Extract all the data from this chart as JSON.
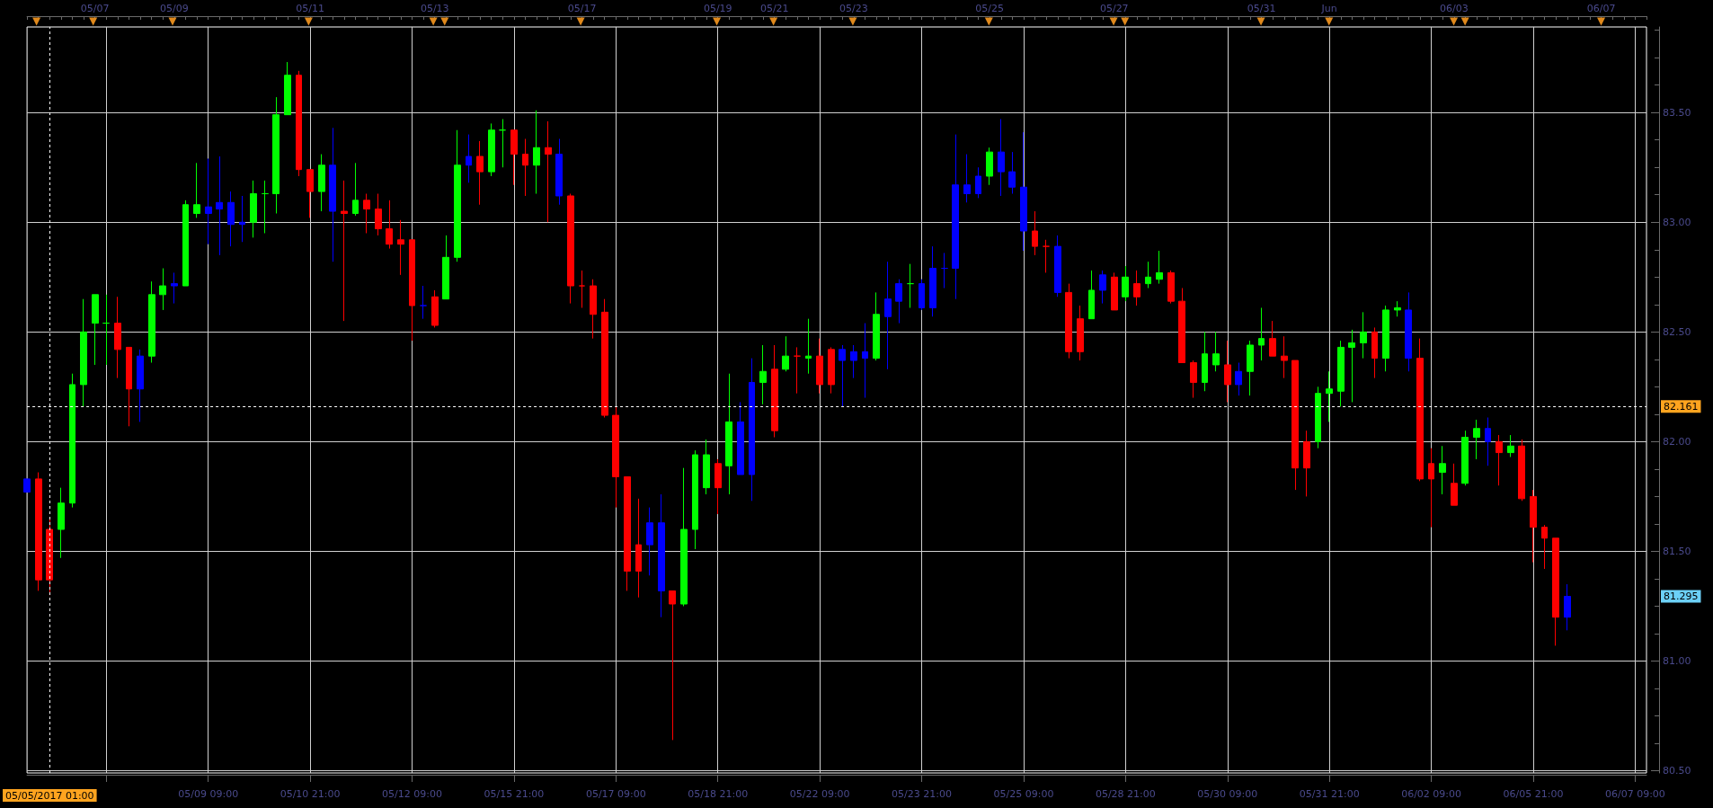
{
  "chart_data": {
    "type": "candlestick",
    "categories": [
      null,
      null,
      "05/05/2017 01:00",
      null,
      null,
      null,
      null,
      null,
      null,
      null,
      null,
      null,
      null,
      null,
      null,
      null,
      "05/09 09:00",
      null,
      null,
      null,
      null,
      null,
      null,
      null,
      null,
      "05/10 21:00",
      null,
      null,
      null,
      null,
      null,
      null,
      null,
      null,
      "05/12 09:00",
      null,
      null,
      null,
      null,
      null,
      null,
      null,
      null,
      "05/15 21:00",
      null,
      null,
      null,
      null,
      null,
      null,
      null,
      null,
      "05/17 09:00",
      null,
      null,
      null,
      null,
      null,
      null,
      null,
      null,
      "05/18 21:00",
      null,
      null,
      null,
      null,
      null,
      null,
      null,
      null,
      "05/22 09:00",
      null,
      null,
      null,
      null,
      null,
      null,
      null,
      null,
      "05/23 21:00",
      null,
      null,
      null,
      null,
      null,
      null,
      null,
      null,
      "05/25 09:00",
      null,
      null,
      null,
      null,
      null,
      null,
      null,
      null,
      "05/28 21:00",
      null,
      null,
      null,
      null,
      null,
      null,
      null,
      null,
      "05/30 09:00",
      null,
      null,
      null,
      null,
      null,
      null,
      null,
      null,
      "05/31 21:00",
      null,
      null,
      null,
      null,
      null,
      null,
      null,
      null,
      "06/02 09:00",
      null,
      null,
      null,
      null,
      null,
      null,
      null,
      null,
      "06/05 21:00",
      null,
      null,
      null,
      null,
      null,
      null,
      null,
      null,
      "06/07 09:00",
      null
    ],
    "ohlc": [
      [
        81.77,
        81.83,
        81.77,
        81.83
      ],
      [
        81.83,
        81.86,
        81.32,
        81.37
      ],
      [
        81.6,
        81.65,
        81.3,
        81.37
      ],
      [
        81.6,
        81.79,
        81.47,
        81.72
      ],
      [
        81.72,
        82.31,
        81.7,
        82.26
      ],
      [
        82.26,
        82.65,
        82.16,
        82.5
      ],
      [
        82.54,
        82.67,
        82.35,
        82.67
      ],
      [
        82.54,
        82.67,
        82.35,
        82.54
      ],
      [
        82.54,
        82.66,
        82.29,
        82.42
      ],
      [
        82.43,
        82.43,
        82.07,
        82.24
      ],
      [
        82.24,
        82.42,
        82.09,
        82.39
      ],
      [
        82.39,
        82.73,
        82.36,
        82.67
      ],
      [
        82.67,
        82.79,
        82.6,
        82.71
      ],
      [
        82.71,
        82.77,
        82.63,
        82.72
      ],
      [
        82.71,
        83.1,
        82.71,
        83.08
      ],
      [
        83.04,
        83.27,
        83.02,
        83.08
      ],
      [
        83.04,
        83.29,
        82.9,
        83.07
      ],
      [
        83.06,
        83.3,
        82.85,
        83.09
      ],
      [
        83.09,
        83.14,
        82.89,
        82.99
      ],
      [
        82.99,
        83.12,
        82.91,
        83.0
      ],
      [
        83.0,
        83.19,
        82.93,
        83.13
      ],
      [
        83.13,
        83.19,
        82.95,
        83.13
      ],
      [
        83.13,
        83.57,
        83.04,
        83.49
      ],
      [
        83.49,
        83.73,
        83.49,
        83.67
      ],
      [
        83.67,
        83.69,
        83.21,
        83.24
      ],
      [
        83.24,
        83.24,
        83.02,
        83.14
      ],
      [
        83.14,
        83.31,
        83.05,
        83.26
      ],
      [
        83.26,
        83.43,
        82.82,
        83.05
      ],
      [
        83.05,
        83.19,
        82.55,
        83.04
      ],
      [
        83.04,
        83.27,
        83.03,
        83.1
      ],
      [
        83.1,
        83.13,
        82.95,
        83.06
      ],
      [
        83.06,
        83.13,
        82.94,
        82.97
      ],
      [
        82.97,
        83.1,
        82.88,
        82.9
      ],
      [
        82.92,
        83.01,
        82.76,
        82.9
      ],
      [
        82.92,
        82.92,
        82.46,
        82.62
      ],
      [
        82.62,
        82.71,
        82.56,
        82.62
      ],
      [
        82.66,
        82.69,
        82.52,
        82.53
      ],
      [
        82.65,
        82.94,
        82.65,
        82.84
      ],
      [
        82.84,
        83.42,
        82.82,
        83.26
      ],
      [
        83.26,
        83.4,
        83.18,
        83.3
      ],
      [
        83.3,
        83.37,
        83.08,
        83.23
      ],
      [
        83.23,
        83.45,
        83.21,
        83.42
      ],
      [
        83.42,
        83.47,
        83.25,
        83.42
      ],
      [
        83.42,
        83.42,
        83.17,
        83.31
      ],
      [
        83.31,
        83.38,
        83.12,
        83.26
      ],
      [
        83.26,
        83.51,
        83.13,
        83.34
      ],
      [
        83.34,
        83.46,
        83.0,
        83.31
      ],
      [
        83.31,
        83.38,
        83.08,
        83.12
      ],
      [
        83.12,
        83.13,
        82.63,
        82.71
      ],
      [
        82.71,
        82.78,
        82.61,
        82.71
      ],
      [
        82.71,
        82.74,
        82.47,
        82.58
      ],
      [
        82.59,
        82.65,
        82.11,
        82.12
      ],
      [
        82.12,
        82.16,
        81.7,
        81.84
      ],
      [
        81.84,
        81.84,
        81.32,
        81.41
      ],
      [
        81.53,
        81.74,
        81.29,
        81.41
      ],
      [
        81.53,
        81.7,
        81.39,
        81.63
      ],
      [
        81.63,
        81.76,
        81.2,
        81.32
      ],
      [
        81.32,
        81.32,
        80.64,
        81.26
      ],
      [
        81.26,
        81.88,
        81.25,
        81.6
      ],
      [
        81.6,
        81.96,
        81.51,
        81.94
      ],
      [
        81.79,
        82.01,
        81.76,
        81.94
      ],
      [
        81.9,
        81.92,
        81.67,
        81.79
      ],
      [
        81.89,
        82.31,
        81.76,
        82.09
      ],
      [
        82.09,
        82.18,
        81.85,
        81.85
      ],
      [
        81.85,
        82.38,
        81.73,
        82.27
      ],
      [
        82.27,
        82.44,
        82.17,
        82.32
      ],
      [
        82.33,
        82.44,
        82.02,
        82.05
      ],
      [
        82.33,
        82.48,
        82.32,
        82.39
      ],
      [
        82.39,
        82.43,
        82.22,
        82.39
      ],
      [
        82.38,
        82.56,
        82.31,
        82.39
      ],
      [
        82.39,
        82.47,
        82.22,
        82.26
      ],
      [
        82.42,
        82.43,
        82.22,
        82.26
      ],
      [
        82.42,
        82.44,
        82.16,
        82.37
      ],
      [
        82.37,
        82.44,
        82.29,
        82.41
      ],
      [
        82.41,
        82.54,
        82.2,
        82.38
      ],
      [
        82.38,
        82.68,
        82.37,
        82.58
      ],
      [
        82.57,
        82.82,
        82.33,
        82.65
      ],
      [
        82.64,
        82.74,
        82.54,
        82.72
      ],
      [
        82.72,
        82.81,
        82.61,
        82.72
      ],
      [
        82.72,
        82.74,
        82.6,
        82.61
      ],
      [
        82.61,
        82.89,
        82.57,
        82.79
      ],
      [
        82.79,
        82.86,
        82.7,
        82.79
      ],
      [
        82.79,
        83.4,
        82.65,
        83.17
      ],
      [
        83.17,
        83.31,
        83.09,
        83.13
      ],
      [
        83.13,
        83.25,
        83.11,
        83.21
      ],
      [
        83.21,
        83.34,
        83.17,
        83.32
      ],
      [
        83.32,
        83.47,
        83.12,
        83.23
      ],
      [
        83.23,
        83.32,
        83.13,
        83.16
      ],
      [
        83.16,
        83.41,
        82.87,
        82.96
      ],
      [
        82.96,
        83.05,
        82.85,
        82.89
      ],
      [
        82.89,
        82.92,
        82.77,
        82.89
      ],
      [
        82.89,
        82.94,
        82.66,
        82.68
      ],
      [
        82.68,
        82.72,
        82.38,
        82.41
      ],
      [
        82.56,
        82.62,
        82.37,
        82.41
      ],
      [
        82.56,
        82.78,
        82.56,
        82.69
      ],
      [
        82.69,
        82.78,
        82.63,
        82.76
      ],
      [
        82.75,
        82.77,
        82.6,
        82.6
      ],
      [
        82.66,
        82.8,
        82.64,
        82.75
      ],
      [
        82.72,
        82.78,
        82.62,
        82.66
      ],
      [
        82.72,
        82.82,
        82.7,
        82.75
      ],
      [
        82.74,
        82.87,
        82.72,
        82.77
      ],
      [
        82.77,
        82.78,
        82.63,
        82.64
      ],
      [
        82.64,
        82.7,
        82.36,
        82.36
      ],
      [
        82.36,
        82.37,
        82.2,
        82.27
      ],
      [
        82.27,
        82.5,
        82.23,
        82.4
      ],
      [
        82.35,
        82.5,
        82.32,
        82.4
      ],
      [
        82.35,
        82.46,
        82.18,
        82.26
      ],
      [
        82.26,
        82.36,
        82.21,
        82.32
      ],
      [
        82.32,
        82.46,
        82.21,
        82.44
      ],
      [
        82.44,
        82.61,
        82.37,
        82.47
      ],
      [
        82.47,
        82.55,
        82.39,
        82.39
      ],
      [
        82.39,
        82.48,
        82.29,
        82.37
      ],
      [
        82.37,
        82.37,
        81.78,
        81.88
      ],
      [
        82.0,
        82.05,
        81.75,
        81.88
      ],
      [
        82.0,
        82.25,
        81.97,
        82.22
      ],
      [
        82.22,
        82.32,
        82.09,
        82.24
      ],
      [
        82.23,
        82.46,
        82.16,
        82.43
      ],
      [
        82.43,
        82.51,
        82.18,
        82.45
      ],
      [
        82.45,
        82.59,
        82.38,
        82.5
      ],
      [
        82.5,
        82.52,
        82.29,
        82.38
      ],
      [
        82.38,
        82.62,
        82.32,
        82.6
      ],
      [
        82.6,
        82.64,
        82.57,
        82.61
      ],
      [
        82.6,
        82.68,
        82.32,
        82.38
      ],
      [
        82.38,
        82.47,
        81.82,
        81.83
      ],
      [
        81.9,
        81.97,
        81.61,
        81.83
      ],
      [
        81.86,
        81.98,
        81.76,
        81.9
      ],
      [
        81.81,
        81.9,
        81.71,
        81.71
      ],
      [
        81.81,
        82.05,
        81.8,
        82.02
      ],
      [
        82.02,
        82.1,
        81.92,
        82.06
      ],
      [
        82.06,
        82.11,
        81.89,
        82.0
      ],
      [
        82.0,
        82.03,
        81.8,
        81.95
      ],
      [
        81.95,
        82.03,
        81.93,
        81.98
      ],
      [
        81.98,
        82.01,
        81.73,
        81.74
      ],
      [
        81.75,
        81.78,
        81.45,
        81.61
      ],
      [
        81.61,
        81.62,
        81.42,
        81.56
      ],
      [
        81.56,
        81.56,
        81.07,
        81.2
      ],
      [
        81.2,
        81.35,
        81.14,
        81.295
      ],
      null,
      null,
      null,
      null,
      null,
      null,
      null
    ],
    "colors": [
      "#0000ff",
      "#ff0000",
      "#ff0000",
      "#00ff00",
      "#00ff00",
      "#00ff00",
      "#00ff00",
      "#00ff00",
      "#ff0000",
      "#ff0000",
      "#0000ff",
      "#00ff00",
      "#00ff00",
      "#0000ff",
      "#00ff00",
      "#00ff00",
      "#0000ff",
      "#0000ff",
      "#0000ff",
      "#0000ff",
      "#00ff00",
      "#00ff00",
      "#00ff00",
      "#00ff00",
      "#ff0000",
      "#ff0000",
      "#00ff00",
      "#0000ff",
      "#ff0000",
      "#00ff00",
      "#ff0000",
      "#ff0000",
      "#ff0000",
      "#ff0000",
      "#ff0000",
      "#0000ff",
      "#ff0000",
      "#00ff00",
      "#00ff00",
      "#0000ff",
      "#ff0000",
      "#00ff00",
      "#00ff00",
      "#ff0000",
      "#ff0000",
      "#00ff00",
      "#ff0000",
      "#0000ff",
      "#ff0000",
      "#ff0000",
      "#ff0000",
      "#ff0000",
      "#ff0000",
      "#ff0000",
      "#ff0000",
      "#0000ff",
      "#0000ff",
      "#ff0000",
      "#00ff00",
      "#00ff00",
      "#00ff00",
      "#ff0000",
      "#00ff00",
      "#0000ff",
      "#0000ff",
      "#00ff00",
      "#ff0000",
      "#00ff00",
      "#ff0000",
      "#00ff00",
      "#ff0000",
      "#ff0000",
      "#0000ff",
      "#0000ff",
      "#0000ff",
      "#00ff00",
      "#0000ff",
      "#0000ff",
      "#00ff00",
      "#0000ff",
      "#0000ff",
      "#0000ff",
      "#0000ff",
      "#0000ff",
      "#0000ff",
      "#00ff00",
      "#0000ff",
      "#0000ff",
      "#0000ff",
      "#ff0000",
      "#ff0000",
      "#0000ff",
      "#ff0000",
      "#ff0000",
      "#00ff00",
      "#0000ff",
      "#ff0000",
      "#00ff00",
      "#ff0000",
      "#00ff00",
      "#00ff00",
      "#ff0000",
      "#ff0000",
      "#ff0000",
      "#00ff00",
      "#00ff00",
      "#ff0000",
      "#0000ff",
      "#00ff00",
      "#00ff00",
      "#ff0000",
      "#ff0000",
      "#ff0000",
      "#ff0000",
      "#00ff00",
      "#00ff00",
      "#00ff00",
      "#00ff00",
      "#00ff00",
      "#ff0000",
      "#00ff00",
      "#00ff00",
      "#0000ff",
      "#ff0000",
      "#ff0000",
      "#00ff00",
      "#ff0000",
      "#00ff00",
      "#00ff00",
      "#0000ff",
      "#ff0000",
      "#00ff00",
      "#ff0000",
      "#ff0000",
      "#ff0000",
      "#ff0000",
      "#0000ff",
      null,
      null,
      null,
      null,
      null,
      null,
      null
    ],
    "ylim": [
      80.49,
      83.89
    ],
    "yticks": [
      {
        "value": 80.5,
        "label": "80.50"
      },
      {
        "value": 80.625,
        "label": null
      },
      {
        "value": 80.75,
        "label": null
      },
      {
        "value": 80.875,
        "label": null
      },
      {
        "value": 81,
        "label": "81.00"
      },
      {
        "value": 81.125,
        "label": null
      },
      {
        "value": 81.25,
        "label": null
      },
      {
        "value": 81.375,
        "label": null
      },
      {
        "value": 81.5,
        "label": "81.50"
      },
      {
        "value": 81.625,
        "label": null
      },
      {
        "value": 81.75,
        "label": null
      },
      {
        "value": 81.875,
        "label": null
      },
      {
        "value": 82,
        "label": "82.00"
      },
      {
        "value": 82.125,
        "label": null
      },
      {
        "value": 82.25,
        "label": null
      },
      {
        "value": 82.375,
        "label": null
      },
      {
        "value": 82.5,
        "label": "82.50"
      },
      {
        "value": 82.625,
        "label": null
      },
      {
        "value": 82.75,
        "label": null
      },
      {
        "value": 82.875,
        "label": null
      },
      {
        "value": 83,
        "label": "83.00"
      },
      {
        "value": 83.125,
        "label": null
      },
      {
        "value": 83.25,
        "label": null
      },
      {
        "value": 83.375,
        "label": null
      },
      {
        "value": 83.5,
        "label": "83.50"
      },
      {
        "value": 83.625,
        "label": null
      },
      {
        "value": 83.75,
        "label": null
      },
      {
        "value": 83.875,
        "label": null
      }
    ],
    "grid": true,
    "ref_lines": [
      {
        "axis": "x",
        "value": "05/05/2017 01:00",
        "line_style": "dashed",
        "color": "#ffffff"
      },
      {
        "axis": "y",
        "value": 82.161,
        "label": "82.161",
        "line_style": "dashed",
        "color": "#ffffff"
      }
    ],
    "annotations": [
      "81.295",
      "05/07",
      "05/09",
      "05/11",
      "05/13",
      "05/17",
      "05/19",
      "05/21",
      "05/23",
      "05/25",
      "05/27",
      "05/31",
      "Jun",
      "06/03",
      "06/07"
    ]
  }
}
